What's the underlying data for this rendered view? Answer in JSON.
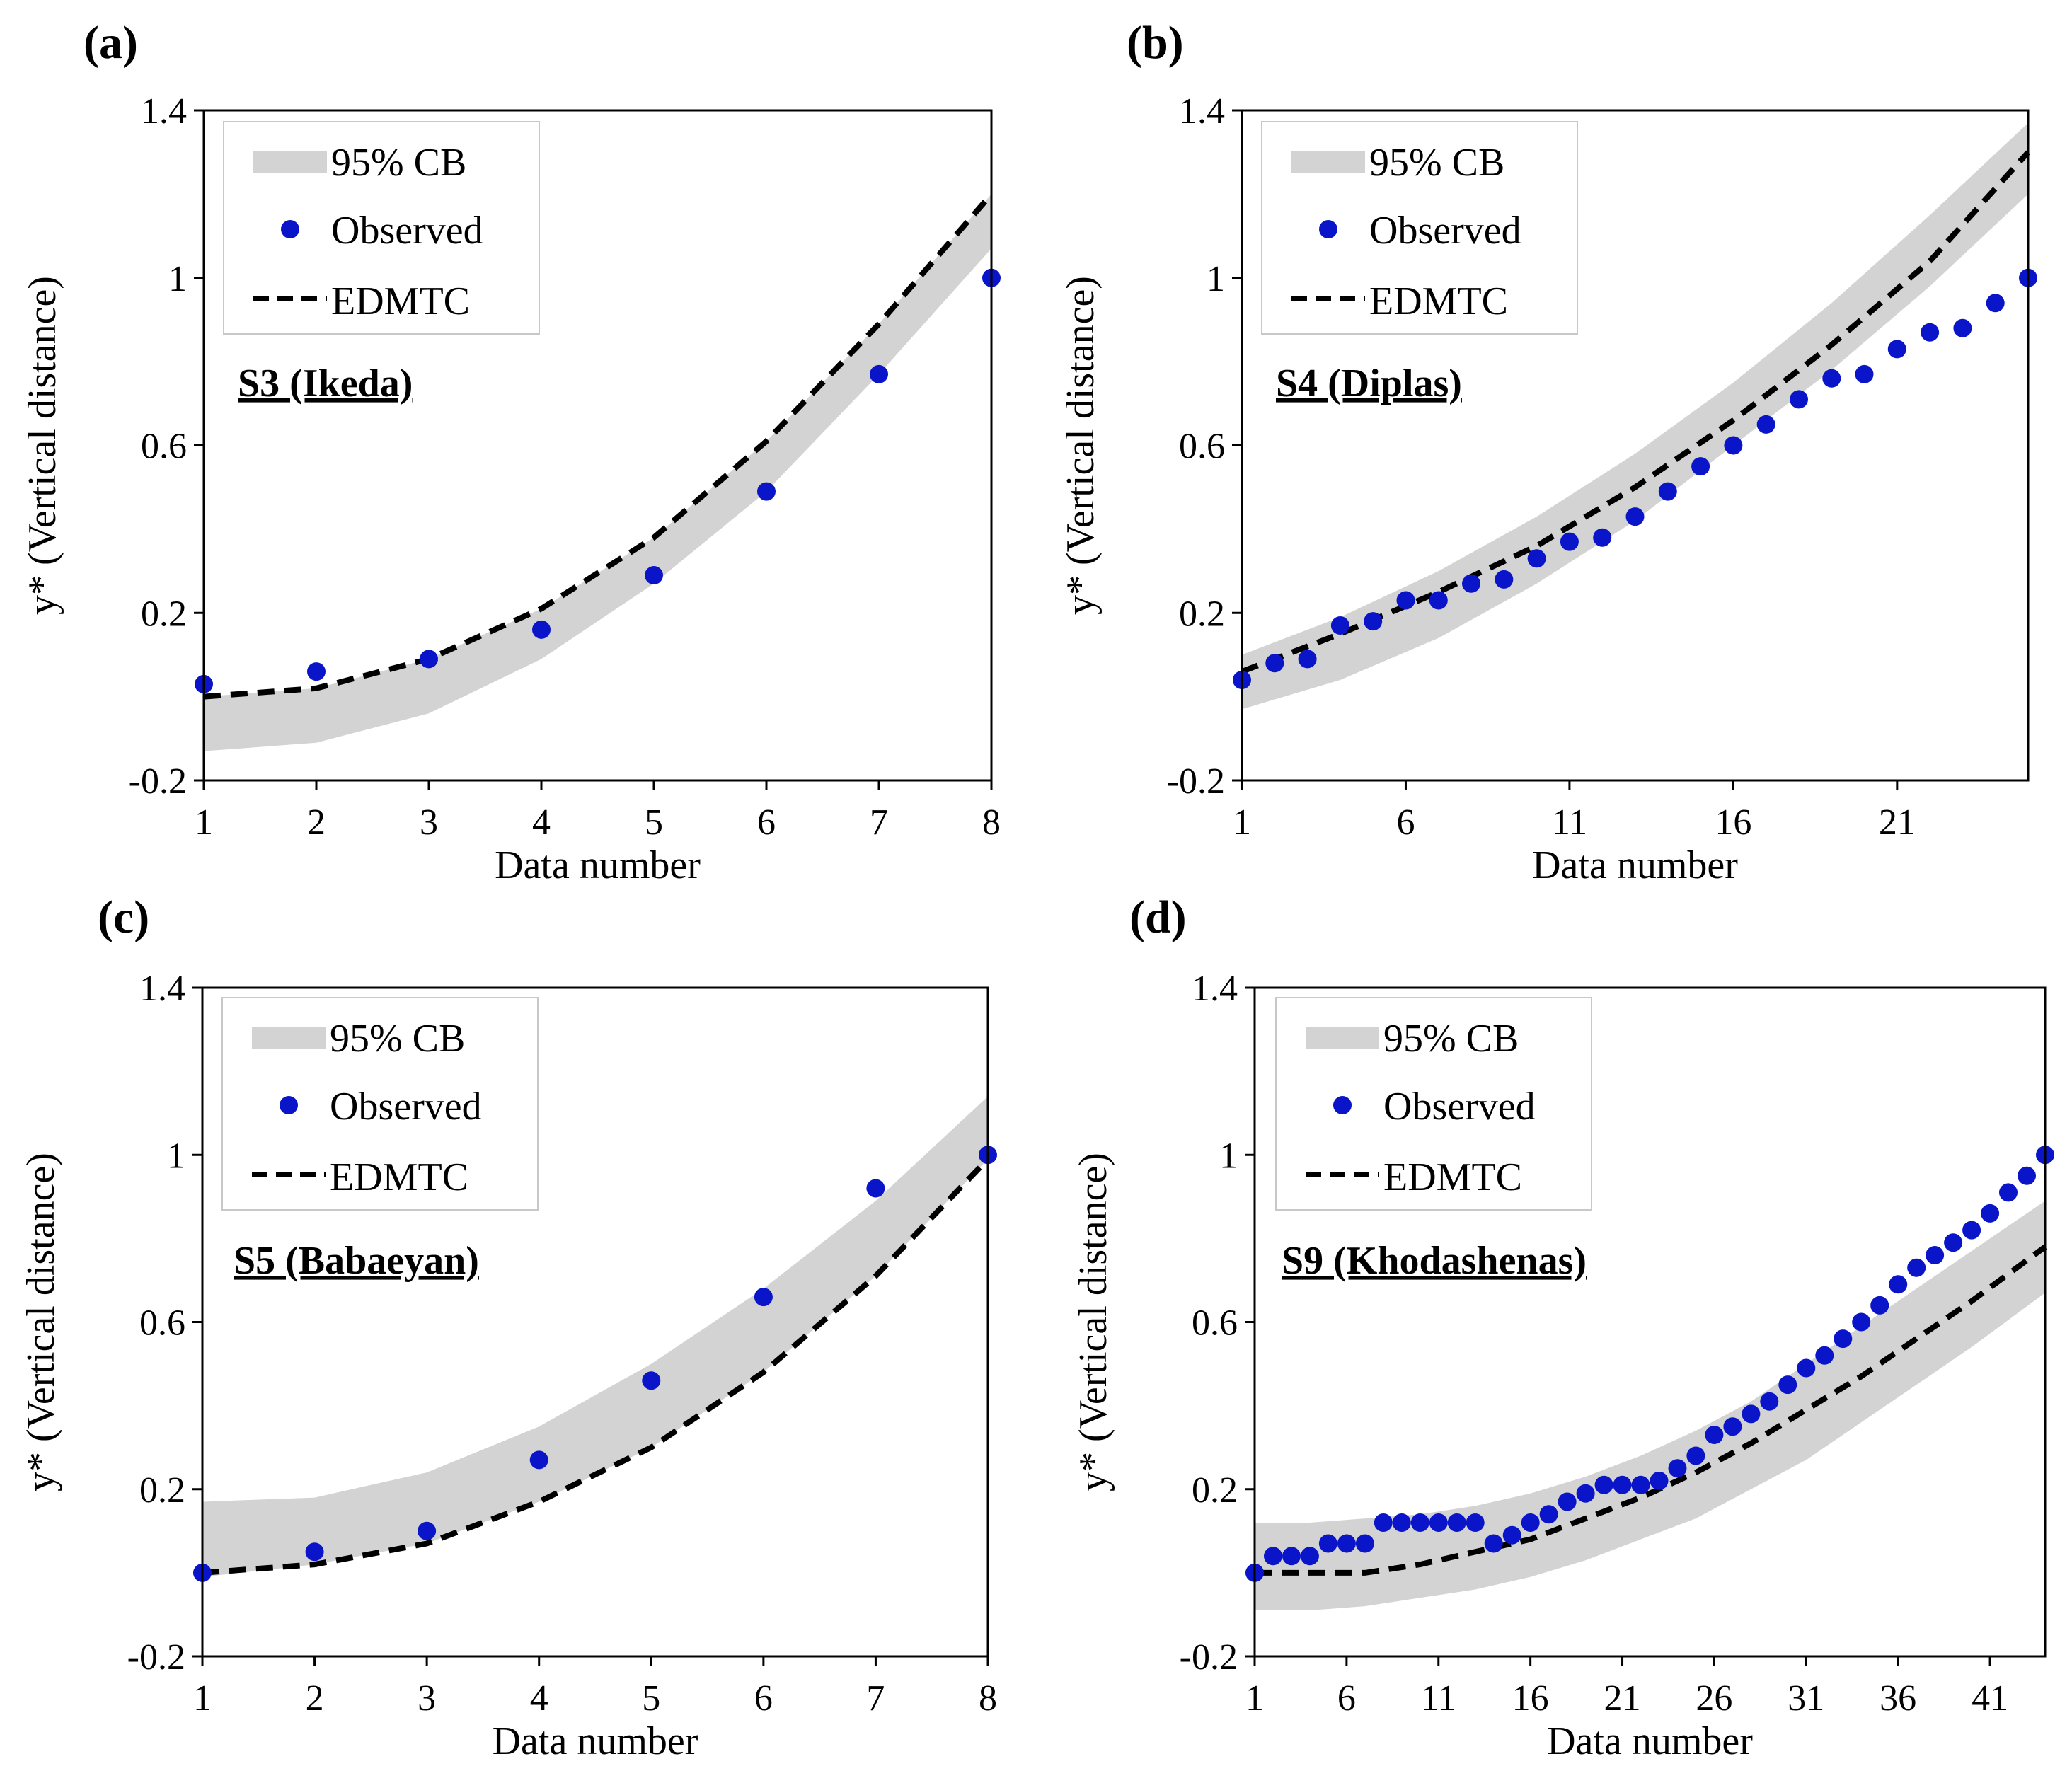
{
  "colors": {
    "band": "#d3d3d3",
    "observed": "#0a14c8",
    "edmtc": "#000000",
    "axis": "#000000"
  },
  "legend_items": {
    "band": "95% CB",
    "observed": "Observed",
    "edmtc": "EDMTC"
  },
  "chart_data": [
    {
      "type": "line",
      "panel_label": "(a)",
      "site_label": "S3 (Ikeda)",
      "xlabel": "Data number",
      "ylabel": "y* (Vertical distance)",
      "xlim": [
        1,
        8
      ],
      "ylim": [
        -0.2,
        1.4
      ],
      "xticks": [
        "1",
        "2",
        "3",
        "4",
        "5",
        "6",
        "7",
        "8"
      ],
      "yticks": [
        "-0.2",
        "0.2",
        "0.6",
        "1",
        "1.4"
      ],
      "observed": {
        "x": [
          1,
          2,
          3,
          4,
          5,
          6,
          7,
          8
        ],
        "y": [
          0.03,
          0.06,
          0.09,
          0.16,
          0.29,
          0.49,
          0.77,
          1.0
        ]
      },
      "edmtc": {
        "x": [
          1,
          2,
          3,
          4,
          5,
          6,
          7,
          8
        ],
        "y": [
          0.0,
          0.02,
          0.09,
          0.21,
          0.38,
          0.61,
          0.89,
          1.2
        ]
      },
      "band": {
        "x": [
          1,
          2,
          3,
          4,
          5,
          6,
          7,
          8
        ],
        "lower": [
          -0.13,
          -0.11,
          -0.04,
          0.09,
          0.27,
          0.49,
          0.77,
          1.07
        ],
        "upper": [
          0.0,
          0.02,
          0.09,
          0.21,
          0.38,
          0.61,
          0.89,
          1.2
        ]
      }
    },
    {
      "type": "line",
      "panel_label": "(b)",
      "site_label": "S4 (Diplas)",
      "xlabel": "Data number",
      "ylabel": "y* (Vertical distance)",
      "xlim": [
        1,
        25
      ],
      "ylim": [
        -0.2,
        1.4
      ],
      "xticks": [
        "1",
        "6",
        "11",
        "16",
        "21"
      ],
      "yticks": [
        "-0.2",
        "0.2",
        "0.6",
        "1",
        "1.4"
      ],
      "observed": {
        "x": [
          1,
          2,
          3,
          4,
          5,
          6,
          7,
          8,
          9,
          10,
          11,
          12,
          13,
          14,
          15,
          16,
          17,
          18,
          19,
          20,
          21,
          22,
          23,
          24,
          25
        ],
        "y": [
          0.04,
          0.08,
          0.09,
          0.17,
          0.18,
          0.23,
          0.23,
          0.27,
          0.28,
          0.33,
          0.37,
          0.38,
          0.43,
          0.49,
          0.55,
          0.6,
          0.65,
          0.71,
          0.76,
          0.77,
          0.83,
          0.87,
          0.88,
          0.94,
          1.0
        ]
      },
      "edmtc": {
        "x": [
          1,
          4,
          7,
          10,
          13,
          16,
          19,
          22,
          25
        ],
        "y": [
          0.06,
          0.15,
          0.25,
          0.36,
          0.5,
          0.66,
          0.84,
          1.04,
          1.3
        ]
      },
      "band": {
        "x": [
          1,
          4,
          7,
          10,
          13,
          16,
          19,
          22,
          25
        ],
        "lower": [
          -0.03,
          0.04,
          0.14,
          0.27,
          0.42,
          0.6,
          0.78,
          0.98,
          1.2
        ],
        "upper": [
          0.1,
          0.19,
          0.3,
          0.43,
          0.58,
          0.75,
          0.94,
          1.15,
          1.37
        ]
      }
    },
    {
      "type": "line",
      "panel_label": "(c)",
      "site_label": "S5 (Babaeyan)",
      "xlabel": "Data number",
      "ylabel": "y* (Vertical distance)",
      "xlim": [
        1,
        8
      ],
      "ylim": [
        -0.2,
        1.4
      ],
      "xticks": [
        "1",
        "2",
        "3",
        "4",
        "5",
        "6",
        "7",
        "8"
      ],
      "yticks": [
        "-0.2",
        "0.2",
        "0.6",
        "1",
        "1.4"
      ],
      "observed": {
        "x": [
          1,
          2,
          3,
          4,
          5,
          6,
          7,
          8
        ],
        "y": [
          0.0,
          0.05,
          0.1,
          0.27,
          0.46,
          0.66,
          0.92,
          1.0
        ]
      },
      "edmtc": {
        "x": [
          1,
          2,
          3,
          4,
          5,
          6,
          7,
          8
        ],
        "y": [
          0.0,
          0.02,
          0.07,
          0.17,
          0.3,
          0.48,
          0.71,
          0.99
        ]
      },
      "band": {
        "x": [
          1,
          2,
          3,
          4,
          5,
          6,
          7,
          8
        ],
        "lower": [
          -0.01,
          0.02,
          0.07,
          0.17,
          0.3,
          0.48,
          0.71,
          0.99
        ],
        "upper": [
          0.17,
          0.18,
          0.24,
          0.35,
          0.5,
          0.68,
          0.89,
          1.14
        ]
      }
    },
    {
      "type": "line",
      "panel_label": "(d)",
      "site_label": "S9 (Khodashenas)",
      "xlabel": "Data number",
      "ylabel": "y* (Vertical distance)",
      "xlim": [
        1,
        44
      ],
      "ylim": [
        -0.2,
        1.4
      ],
      "xticks": [
        "1",
        "6",
        "11",
        "16",
        "21",
        "26",
        "31",
        "36",
        "41"
      ],
      "yticks": [
        "-0.2",
        "0.2",
        "0.6",
        "1",
        "1.4"
      ],
      "observed": {
        "x": [
          1,
          2,
          3,
          4,
          5,
          6,
          7,
          8,
          9,
          10,
          11,
          12,
          13,
          14,
          15,
          16,
          17,
          18,
          19,
          20,
          21,
          22,
          23,
          24,
          25,
          26,
          27,
          28,
          29,
          30,
          31,
          32,
          33,
          34,
          35,
          36,
          37,
          38,
          39,
          40,
          41,
          42,
          43,
          44
        ],
        "y": [
          0.0,
          0.04,
          0.04,
          0.04,
          0.07,
          0.07,
          0.07,
          0.12,
          0.12,
          0.12,
          0.12,
          0.12,
          0.12,
          0.07,
          0.09,
          0.12,
          0.14,
          0.17,
          0.19,
          0.21,
          0.21,
          0.21,
          0.22,
          0.25,
          0.28,
          0.33,
          0.35,
          0.38,
          0.41,
          0.45,
          0.49,
          0.52,
          0.56,
          0.6,
          0.64,
          0.69,
          0.73,
          0.76,
          0.79,
          0.82,
          0.86,
          0.91,
          0.95,
          1.0
        ]
      },
      "edmtc": {
        "x": [
          1,
          4,
          7,
          10,
          13,
          16,
          19,
          22,
          25,
          28,
          31,
          34,
          37,
          40,
          44
        ],
        "y": [
          0.0,
          0.0,
          0.0,
          0.02,
          0.05,
          0.08,
          0.13,
          0.18,
          0.24,
          0.31,
          0.39,
          0.47,
          0.56,
          0.65,
          0.78
        ]
      },
      "band": {
        "x": [
          1,
          4,
          7,
          10,
          13,
          16,
          19,
          22,
          25,
          28,
          31,
          34,
          37,
          40,
          44
        ],
        "lower": [
          -0.09,
          -0.09,
          -0.08,
          -0.06,
          -0.04,
          -0.01,
          0.03,
          0.08,
          0.13,
          0.2,
          0.27,
          0.36,
          0.45,
          0.54,
          0.67
        ],
        "upper": [
          0.12,
          0.12,
          0.13,
          0.14,
          0.16,
          0.19,
          0.23,
          0.28,
          0.34,
          0.41,
          0.5,
          0.59,
          0.68,
          0.77,
          0.89
        ]
      }
    }
  ]
}
